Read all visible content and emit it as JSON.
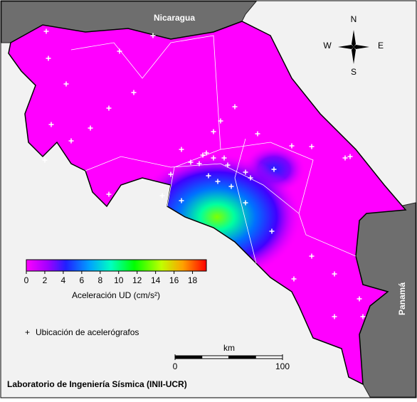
{
  "labels": {
    "north_country": "Nicaragua",
    "south_country": "Panamá"
  },
  "compass": {
    "n": "N",
    "s": "S",
    "e": "E",
    "w": "W"
  },
  "colorbar": {
    "label": "Aceleración UD (cm/s²)",
    "lim": [
      0,
      19.5
    ],
    "ticks": [
      0,
      2,
      4,
      6,
      8,
      10,
      12,
      14,
      16,
      18
    ]
  },
  "legend": {
    "symbol": "+",
    "text": "Ubicación de acelerógrafos"
  },
  "scale_bar": {
    "unit": "km",
    "lim": [
      0,
      100
    ],
    "ticks": [
      0,
      100
    ]
  },
  "credit": "Laboratorio de Ingeniería Sísmica (INII-UCR)"
}
